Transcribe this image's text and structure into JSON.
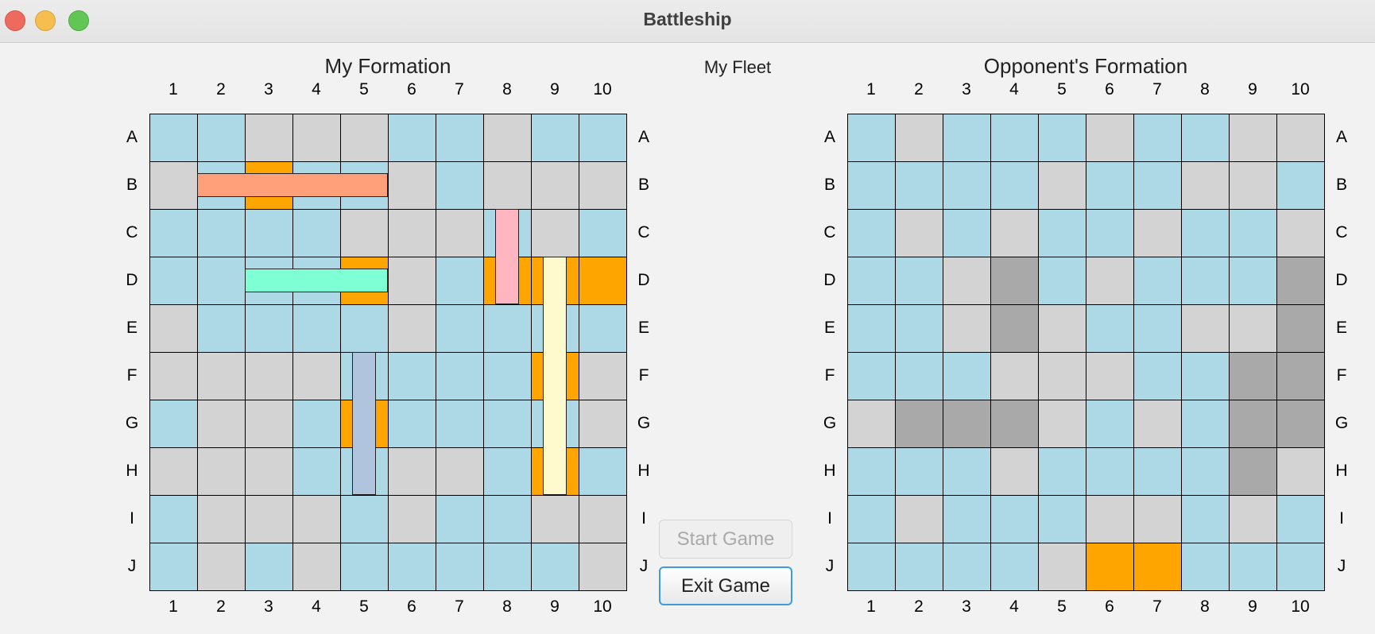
{
  "window": {
    "title": "Battleship"
  },
  "my_board": {
    "title": "My Formation",
    "columns": [
      "1",
      "2",
      "3",
      "4",
      "5",
      "6",
      "7",
      "8",
      "9",
      "10"
    ],
    "rows": [
      "A",
      "B",
      "C",
      "D",
      "E",
      "F",
      "G",
      "H",
      "I",
      "J"
    ],
    "cells": [
      "WWMMMWWMWW",
      "MWHWWMWMMM",
      "WWWWMMMWMW",
      "WWWWHMWHHH",
      "MWWWWMWWWW",
      "MMMMWWWWHM",
      "WMMWHWWWWM",
      "MMMWWMMWHW",
      "WMMMWMWWMM",
      "WMWMWWWWWM"
    ],
    "ships": [
      {
        "name": "Battleship",
        "row": 1,
        "col": 1,
        "length": 4,
        "orientation": "horizontal",
        "color": "#ffa07a"
      },
      {
        "name": "Cruiser",
        "row": 3,
        "col": 2,
        "length": 3,
        "orientation": "horizontal",
        "color": "#7fffd4"
      },
      {
        "name": "Destroyer",
        "row": 2,
        "col": 7,
        "length": 2,
        "orientation": "vertical",
        "color": "#ffb6c1"
      },
      {
        "name": "Carrier",
        "row": 3,
        "col": 8,
        "length": 5,
        "orientation": "vertical",
        "color": "#fffacd"
      },
      {
        "name": "Submarine",
        "row": 5,
        "col": 4,
        "length": 3,
        "orientation": "vertical",
        "color": "#b0c4de"
      }
    ]
  },
  "fleet": {
    "title": "My Fleet"
  },
  "opponent_board": {
    "title": "Opponent's Formation",
    "columns": [
      "1",
      "2",
      "3",
      "4",
      "5",
      "6",
      "7",
      "8",
      "9",
      "10"
    ],
    "rows": [
      "A",
      "B",
      "C",
      "D",
      "E",
      "F",
      "G",
      "H",
      "I",
      "J"
    ],
    "cells": [
      "WMWWWMWWMM",
      "WWWWMWWMMW",
      "WMWMWWMWWM",
      "WWMSWMWWWS",
      "WWMSMWWMMS",
      "WWWMMMWWSS",
      "MSSSMWMWSS",
      "WWWMWWWWSM",
      "WMWWWMMWMW",
      "WWWWMHHWWW"
    ]
  },
  "buttons": {
    "start_label": "Start Game",
    "exit_label": "Exit Game"
  },
  "state_colors": {
    "W": "#add8e6",
    "M": "#d3d3d3",
    "H": "#ffa500",
    "S": "#a9a9a9"
  }
}
